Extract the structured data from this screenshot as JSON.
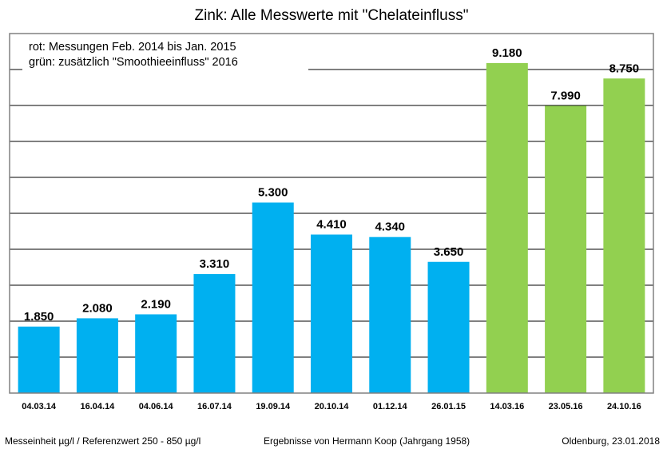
{
  "chart_data": {
    "type": "bar",
    "title": "Zink: Alle Messwerte mit \"Chelateinfluss\"",
    "xlabel": "",
    "ylabel": "",
    "ylim": [
      0,
      10000
    ],
    "ytick_step": 1000,
    "grid": true,
    "y_tick_labels_shown": false,
    "categories": [
      "04.03.14",
      "16.04.14",
      "04.06.14",
      "16.07.14",
      "19.09.14",
      "20.10.14",
      "01.12.14",
      "26.01.15",
      "14.03.16",
      "23.05.16",
      "24.10.16"
    ],
    "values": [
      1850,
      2080,
      2190,
      3310,
      5300,
      4410,
      4340,
      3650,
      9180,
      7990,
      8750
    ],
    "data_labels": [
      "1.850",
      "2.080",
      "2.190",
      "3.310",
      "5.300",
      "4.410",
      "4.340",
      "3.650",
      "9.180",
      "7.990",
      "8.750"
    ],
    "bar_groups": [
      "rot",
      "rot",
      "rot",
      "rot",
      "rot",
      "rot",
      "rot",
      "rot",
      "grün",
      "grün",
      "grün"
    ],
    "colors": {
      "rot": "#00b0f0",
      "grün": "#92d050",
      "grid": "#000000"
    },
    "legend": {
      "placement": "top-left",
      "lines": [
        "rot: Messungen Feb. 2014 bis Jan. 2015",
        "grün: zusätzlich \"Smoothieeinfluss\" 2016"
      ]
    }
  },
  "footer": {
    "left": "Messeinheit µg/l / Referenzwert 250 - 850 µg/l",
    "center": "Ergebnisse von Hermann Koop (Jahrgang 1958)",
    "right": "Oldenburg, 23.01.2018"
  }
}
